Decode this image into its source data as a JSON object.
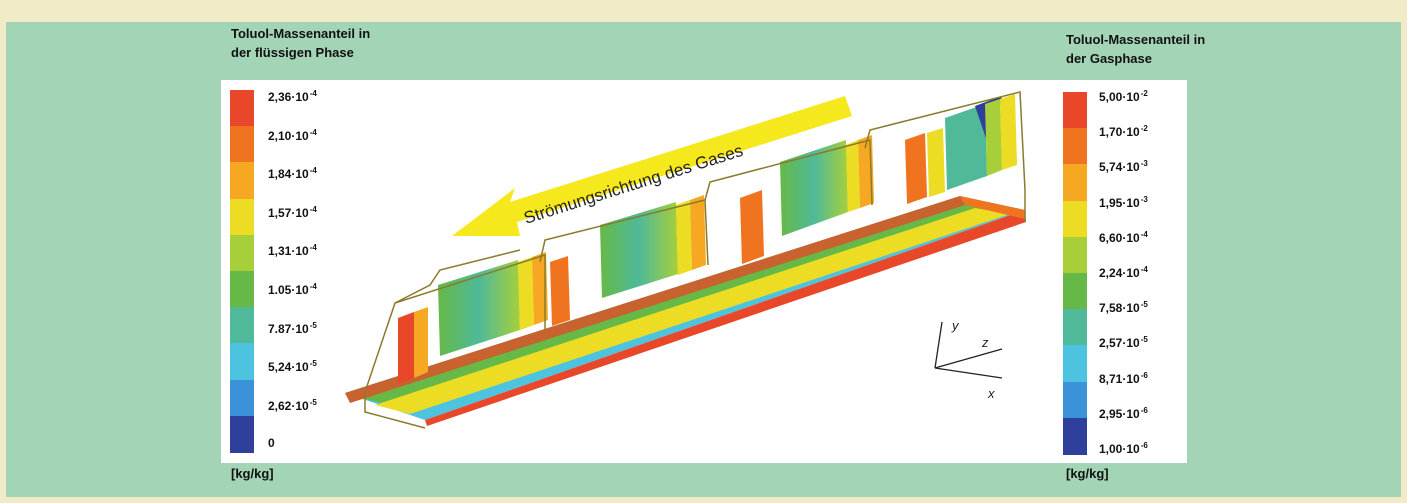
{
  "left_legend": {
    "title_line1": "Toluol-Massenanteil in",
    "title_line2": "der flüssigen Phase",
    "unit": "[kg/kg]",
    "labels": [
      {
        "m": "2,36·10",
        "e": "-4"
      },
      {
        "m": "2,10·10",
        "e": "-4"
      },
      {
        "m": "1,84·10",
        "e": "-4"
      },
      {
        "m": "1,57·10",
        "e": "-4"
      },
      {
        "m": "1,31·10",
        "e": "-4"
      },
      {
        "m": "1.05·10",
        "e": "-4"
      },
      {
        "m": "7.87·10",
        "e": "-5"
      },
      {
        "m": "5,24·10",
        "e": "-5"
      },
      {
        "m": "2,62·10",
        "e": "-5"
      },
      {
        "m": "0",
        "e": ""
      }
    ],
    "colors": [
      "#e8472a",
      "#f0741f",
      "#f7a823",
      "#ecdc24",
      "#a6cf3a",
      "#66b946",
      "#4fb99a",
      "#4cc4e0",
      "#3b92d8",
      "#2e3f9c"
    ]
  },
  "right_legend": {
    "title_line1": "Toluol-Massenanteil in",
    "title_line2": "der Gasphase",
    "unit": "[kg/kg]",
    "labels": [
      {
        "m": "5,00·10",
        "e": "-2"
      },
      {
        "m": "1,70·10",
        "e": "-2"
      },
      {
        "m": "5,74·10",
        "e": "-3"
      },
      {
        "m": "1,95·10",
        "e": "-3"
      },
      {
        "m": "6,60·10",
        "e": "-4"
      },
      {
        "m": "2,24·10",
        "e": "-4"
      },
      {
        "m": "7,58·10",
        "e": "-5"
      },
      {
        "m": "2,57·10",
        "e": "-5"
      },
      {
        "m": "8,71·10",
        "e": "-6"
      },
      {
        "m": "2,95·10",
        "e": "-6"
      },
      {
        "m": "1,00·10",
        "e": "-6"
      }
    ],
    "colors": [
      "#e8472a",
      "#f0741f",
      "#f7a823",
      "#ecdc24",
      "#a6cf3a",
      "#66b946",
      "#4fb99a",
      "#4cc4e0",
      "#3b92d8",
      "#2e3f9c"
    ]
  },
  "flow_label": "Strömungsrichtung des Gases",
  "axes": {
    "x": "x",
    "y": "y",
    "z": "z"
  },
  "colors": {
    "frame": "#a3d4b6",
    "panel": "#ffffff",
    "arrow": "#f5e81c",
    "wire": "#8a7a2a",
    "channel_bottom": "#c8622e"
  }
}
